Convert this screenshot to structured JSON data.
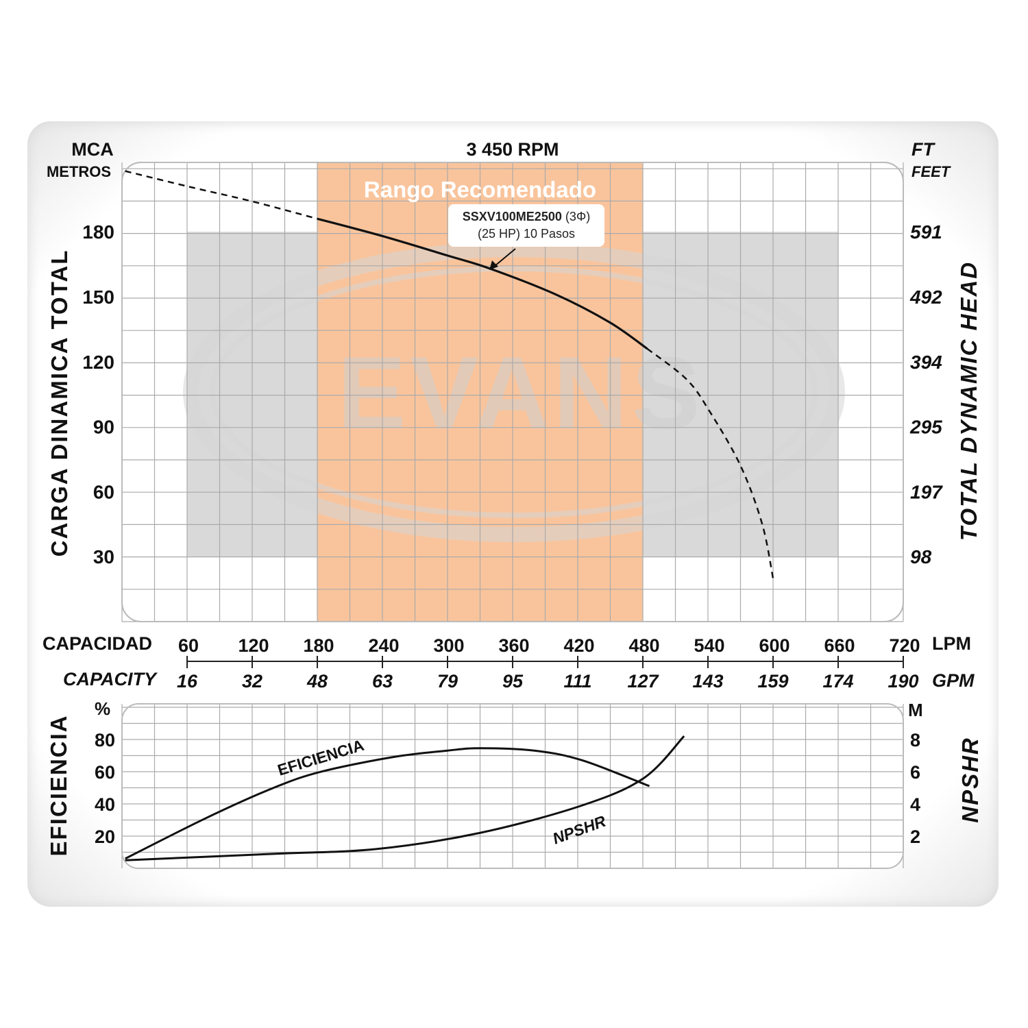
{
  "chart_data": [
    {
      "type": "line",
      "title": "3 450 RPM",
      "left_unit": "MCA",
      "left_unit_sub": "METROS",
      "right_unit": "FT",
      "right_unit_sub": "FEET",
      "ylabel": "CARGA DINAMICA TOTAL",
      "ylabel_right": "TOTAL DYNAMIC HEAD",
      "yticks": [
        180,
        150,
        120,
        90,
        60,
        30
      ],
      "yticks_right": [
        "591",
        "492",
        "394",
        "295",
        "197",
        "98"
      ],
      "ylim": [
        0,
        212
      ],
      "xlim": [
        0,
        720
      ],
      "xlabel": "CAPACIDAD",
      "xlabel_en": "CAPACITY",
      "x_unit": "LPM",
      "x_unit_en": "GPM",
      "xticks": [
        60,
        120,
        180,
        240,
        300,
        360,
        420,
        480,
        540,
        600,
        660,
        720
      ],
      "xticks_gpm": [
        "16",
        "32",
        "48",
        "63",
        "79",
        "95",
        "111",
        "127",
        "143",
        "159",
        "174",
        "190"
      ],
      "recommended_range": {
        "label": "Rango Recomendado",
        "x": [
          180,
          480
        ],
        "color": "#f9c49c"
      },
      "gray_zones": [
        {
          "x": [
            60,
            180
          ],
          "y": [
            30,
            180
          ]
        },
        {
          "x": [
            480,
            660
          ],
          "y": [
            30,
            180
          ]
        }
      ],
      "series": [
        {
          "name": "SSXV100ME2500 (3Φ)",
          "subtitle": "(25 HP) 10 Pasos",
          "x": [
            3,
            60,
            120,
            180,
            240,
            300,
            339,
            400,
            450,
            484,
            520,
            541,
            570,
            590,
            600
          ],
          "y": [
            208,
            201,
            194,
            186,
            178,
            169,
            163,
            151,
            138,
            126,
            112,
            97.5,
            72,
            45,
            20
          ],
          "solid_range": [
            180,
            484
          ]
        }
      ],
      "watermark": "EVANS"
    },
    {
      "type": "line",
      "ylabel": "EFICIENCIA",
      "left_unit": "%",
      "ylabel_right": "NPSHR",
      "right_unit": "M",
      "yticks": [
        80,
        60,
        40,
        20
      ],
      "yticks_right": [
        8,
        6,
        4,
        2
      ],
      "ylim": [
        0,
        102
      ],
      "xlim": [
        0,
        720
      ],
      "series": [
        {
          "name": "EFICIENCIA",
          "axis": "left",
          "x": [
            3,
            77,
            140,
            184,
            250,
            300,
            330,
            380,
            424,
            486
          ],
          "y": [
            6,
            31,
            50,
            60,
            69,
            73,
            74.5,
            73,
            67,
            51
          ]
        },
        {
          "name": "NPSHR",
          "axis": "right",
          "x": [
            3,
            140,
            235,
            330,
            424,
            481,
            518
          ],
          "y": [
            0.5,
            0.9,
            1.2,
            2.2,
            3.9,
            5.6,
            8.2
          ]
        }
      ]
    }
  ]
}
